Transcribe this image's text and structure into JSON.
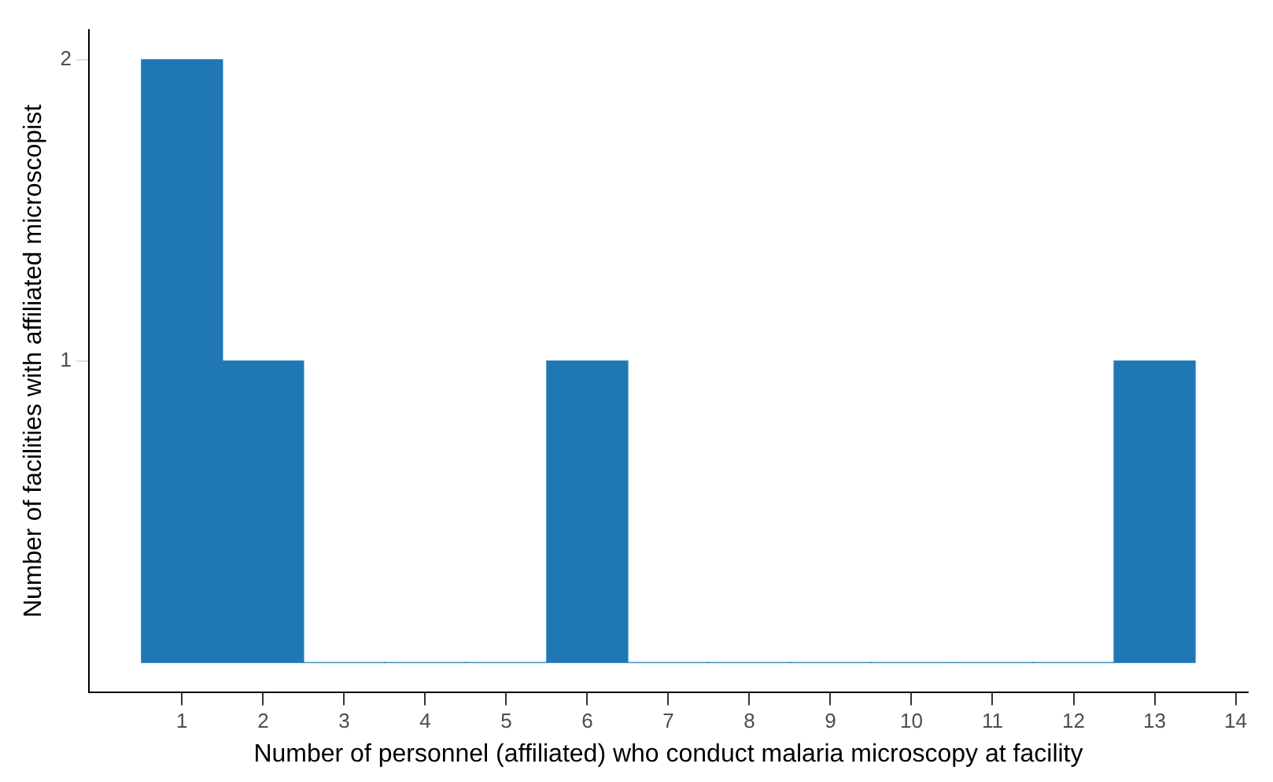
{
  "chart_data": {
    "type": "histogram",
    "xlabel": "Number of personnel (affiliated) who conduct malaria microscopy at facility",
    "ylabel": "Number of facilities with affiliated microscopist",
    "bins": [
      0.5,
      1.5,
      2.5,
      3.5,
      4.5,
      5.5,
      6.5,
      7.5,
      8.5,
      9.5,
      10.5,
      11.5,
      12.5,
      13.5
    ],
    "values": [
      2,
      1,
      0,
      0,
      0,
      1,
      0,
      0,
      0,
      0,
      0,
      0,
      1
    ],
    "color": "#1f78b4",
    "xlim": [
      -0.15,
      14.15
    ],
    "xticks": [
      1,
      2,
      3,
      4,
      5,
      6,
      7,
      8,
      9,
      10,
      11,
      12,
      13,
      14
    ],
    "ylim": [
      -0.1,
      2.1
    ],
    "yticks": [
      1,
      2
    ],
    "grid": false
  }
}
